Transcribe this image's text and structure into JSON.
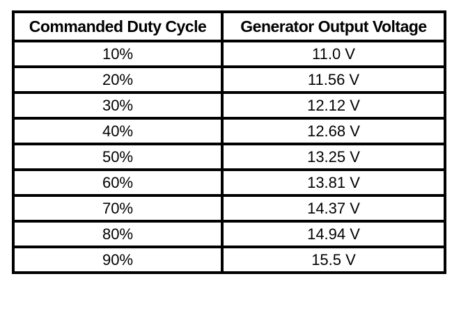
{
  "table": {
    "columns": [
      "Commanded Duty Cycle",
      "Generator Output Voltage"
    ],
    "rows": [
      {
        "duty_cycle": "10%",
        "voltage": "11.0 V"
      },
      {
        "duty_cycle": "20%",
        "voltage": "11.56 V"
      },
      {
        "duty_cycle": "30%",
        "voltage": "12.12 V"
      },
      {
        "duty_cycle": "40%",
        "voltage": "12.68 V"
      },
      {
        "duty_cycle": "50%",
        "voltage": "13.25 V"
      },
      {
        "duty_cycle": "60%",
        "voltage": "13.81 V"
      },
      {
        "duty_cycle": "70%",
        "voltage": "14.37 V"
      },
      {
        "duty_cycle": "80%",
        "voltage": "14.94 V"
      },
      {
        "duty_cycle": "90%",
        "voltage": "15.5 V"
      }
    ]
  },
  "chart_data": {
    "type": "table",
    "title": "",
    "columns": [
      "Commanded Duty Cycle",
      "Generator Output Voltage"
    ],
    "categories": [
      "10%",
      "20%",
      "30%",
      "40%",
      "50%",
      "60%",
      "70%",
      "80%",
      "90%"
    ],
    "values": [
      11.0,
      11.56,
      12.12,
      12.68,
      13.25,
      13.81,
      14.37,
      14.94,
      15.5
    ],
    "value_labels": [
      "11.0 V",
      "11.56 V",
      "12.12 V",
      "12.68 V",
      "13.25 V",
      "13.81 V",
      "14.37 V",
      "14.94 V",
      "15.5 V"
    ],
    "value_unit": "V"
  },
  "colors": {
    "border": "#000000",
    "background": "#ffffff",
    "text": "#000000"
  }
}
